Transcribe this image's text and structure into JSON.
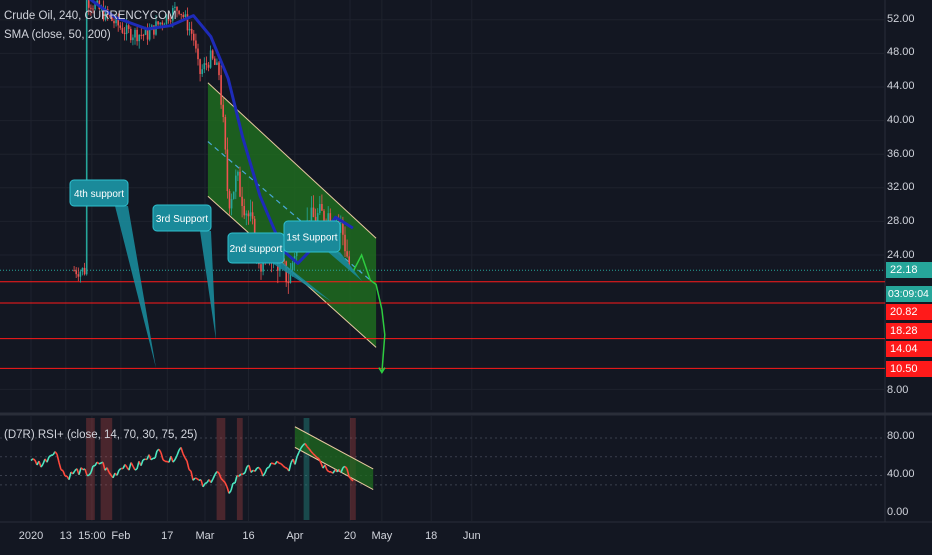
{
  "legend": {
    "main": "Crude Oil, 240, CURRENCYCOM",
    "sma": "SMA (close, 50, 200)",
    "rsi": "(D7R) RSI+ (close, 14, 70, 30, 75, 25)"
  },
  "colors": {
    "background": "#131722",
    "up": "#26a69a",
    "down": "#ef5350",
    "sma": "#1e2bb8",
    "channel_fill": "#1f6b1f",
    "channel_border": "#e8c9a0",
    "support_line": "#ff1a1a",
    "annotation": "#1a8a9a",
    "last_price": "#26a69a",
    "rsi_up": "#4de6c0",
    "rsi_down": "#ff4a3d"
  },
  "price_axis": {
    "ticks": [
      "52.00",
      "48.00",
      "44.00",
      "40.00",
      "36.00",
      "32.00",
      "28.00",
      "24.00",
      "8.00"
    ],
    "last_price": "22.18",
    "countdown": "03:09:04",
    "levels": [
      "20.82",
      "18.28",
      "14.04",
      "10.50"
    ]
  },
  "rsi_axis": {
    "ticks": [
      "80.00",
      "40.00",
      "0.00"
    ]
  },
  "time_axis": [
    "2020",
    "13",
    "15:00",
    "Feb",
    "17",
    "Mar",
    "16",
    "Apr",
    "20",
    "May",
    "18",
    "Jun"
  ],
  "annotations": [
    "4th support",
    "3rd Support",
    "2nd support",
    "1st Support"
  ],
  "chart_data": [
    {
      "type": "candlestick",
      "title": "Crude Oil, 240, CURRENCYCOM",
      "x_range": [
        "2020-01-01",
        "2020-06-22"
      ],
      "ylim": [
        6,
        55
      ],
      "price_path": [
        {
          "date": "2020-01-20",
          "price": 54.5
        },
        {
          "date": "2020-01-27",
          "price": 52.5
        },
        {
          "date": "2020-02-03",
          "price": 50.5
        },
        {
          "date": "2020-02-10",
          "price": 50.2
        },
        {
          "date": "2020-02-17",
          "price": 52.5
        },
        {
          "date": "2020-02-21",
          "price": 53.5
        },
        {
          "date": "2020-02-26",
          "price": 50.0
        },
        {
          "date": "2020-02-28",
          "price": 45.5
        },
        {
          "date": "2020-03-03",
          "price": 47.5
        },
        {
          "date": "2020-03-06",
          "price": 45.5
        },
        {
          "date": "2020-03-09",
          "price": 30.5
        },
        {
          "date": "2020-03-12",
          "price": 33.0
        },
        {
          "date": "2020-03-17",
          "price": 27.5
        },
        {
          "date": "2020-03-20",
          "price": 23.0
        },
        {
          "date": "2020-03-24",
          "price": 24.5
        },
        {
          "date": "2020-03-30",
          "price": 21.0
        },
        {
          "date": "2020-04-02",
          "price": 26.5
        },
        {
          "date": "2020-04-08",
          "price": 28.5
        },
        {
          "date": "2020-04-14",
          "price": 29.0
        },
        {
          "date": "2020-04-17",
          "price": 27.5
        },
        {
          "date": "2020-04-20",
          "price": 22.18
        }
      ],
      "sma_path": [
        {
          "date": "2020-01-20",
          "value": 54.8
        },
        {
          "date": "2020-01-30",
          "value": 52.3
        },
        {
          "date": "2020-02-10",
          "value": 50.9
        },
        {
          "date": "2020-02-18",
          "value": 51.3
        },
        {
          "date": "2020-02-26",
          "value": 52.5
        },
        {
          "date": "2020-03-03",
          "value": 50.0
        },
        {
          "date": "2020-03-09",
          "value": 45.0
        },
        {
          "date": "2020-03-14",
          "value": 38.0
        },
        {
          "date": "2020-03-20",
          "value": 31.0
        },
        {
          "date": "2020-03-28",
          "value": 24.5
        },
        {
          "date": "2020-04-02",
          "value": 23.0
        },
        {
          "date": "2020-04-09",
          "value": 25.5
        },
        {
          "date": "2020-04-15",
          "value": 28.5
        },
        {
          "date": "2020-04-21",
          "value": 27.2
        }
      ],
      "channel": {
        "upper": [
          {
            "date": "2020-03-02",
            "price": 44.5
          },
          {
            "date": "2020-04-29",
            "price": 26.0
          }
        ],
        "lower": [
          {
            "date": "2020-03-02",
            "price": 31.0
          },
          {
            "date": "2020-04-29",
            "price": 13.0
          }
        ],
        "mid": [
          {
            "date": "2020-03-02",
            "price": 37.5
          },
          {
            "date": "2020-04-27",
            "price": 21.0
          }
        ]
      },
      "support_levels": [
        20.82,
        18.28,
        14.04,
        10.5
      ],
      "last_price": 22.18
    },
    {
      "type": "line",
      "title": "(D7R) RSI+ (close, 14, 70, 30, 75, 25)",
      "ylim": [
        0,
        100
      ],
      "levels": [
        80,
        60,
        40,
        30
      ],
      "series": [
        {
          "name": "RSI",
          "points": [
            {
              "date": "2020-01-01",
              "value": 56
            },
            {
              "date": "2020-01-05",
              "value": 52
            },
            {
              "date": "2020-01-09",
              "value": 68
            },
            {
              "date": "2020-01-13",
              "value": 38
            },
            {
              "date": "2020-01-17",
              "value": 45
            },
            {
              "date": "2020-01-21",
              "value": 42
            },
            {
              "date": "2020-01-25",
              "value": 55
            },
            {
              "date": "2020-01-29",
              "value": 38
            },
            {
              "date": "2020-02-02",
              "value": 52
            },
            {
              "date": "2020-02-06",
              "value": 48
            },
            {
              "date": "2020-02-10",
              "value": 58
            },
            {
              "date": "2020-02-14",
              "value": 65
            },
            {
              "date": "2020-02-18",
              "value": 55
            },
            {
              "date": "2020-02-22",
              "value": 70
            },
            {
              "date": "2020-02-26",
              "value": 38
            },
            {
              "date": "2020-03-01",
              "value": 28
            },
            {
              "date": "2020-03-05",
              "value": 45
            },
            {
              "date": "2020-03-09",
              "value": 22
            },
            {
              "date": "2020-03-13",
              "value": 42
            },
            {
              "date": "2020-03-17",
              "value": 48
            },
            {
              "date": "2020-03-21",
              "value": 42
            },
            {
              "date": "2020-03-25",
              "value": 54
            },
            {
              "date": "2020-03-29",
              "value": 46
            },
            {
              "date": "2020-04-01",
              "value": 55
            },
            {
              "date": "2020-04-04",
              "value": 77
            },
            {
              "date": "2020-04-08",
              "value": 64
            },
            {
              "date": "2020-04-11",
              "value": 50
            },
            {
              "date": "2020-04-15",
              "value": 45
            },
            {
              "date": "2020-04-18",
              "value": 48
            },
            {
              "date": "2020-04-21",
              "value": 33
            }
          ]
        }
      ]
    }
  ]
}
